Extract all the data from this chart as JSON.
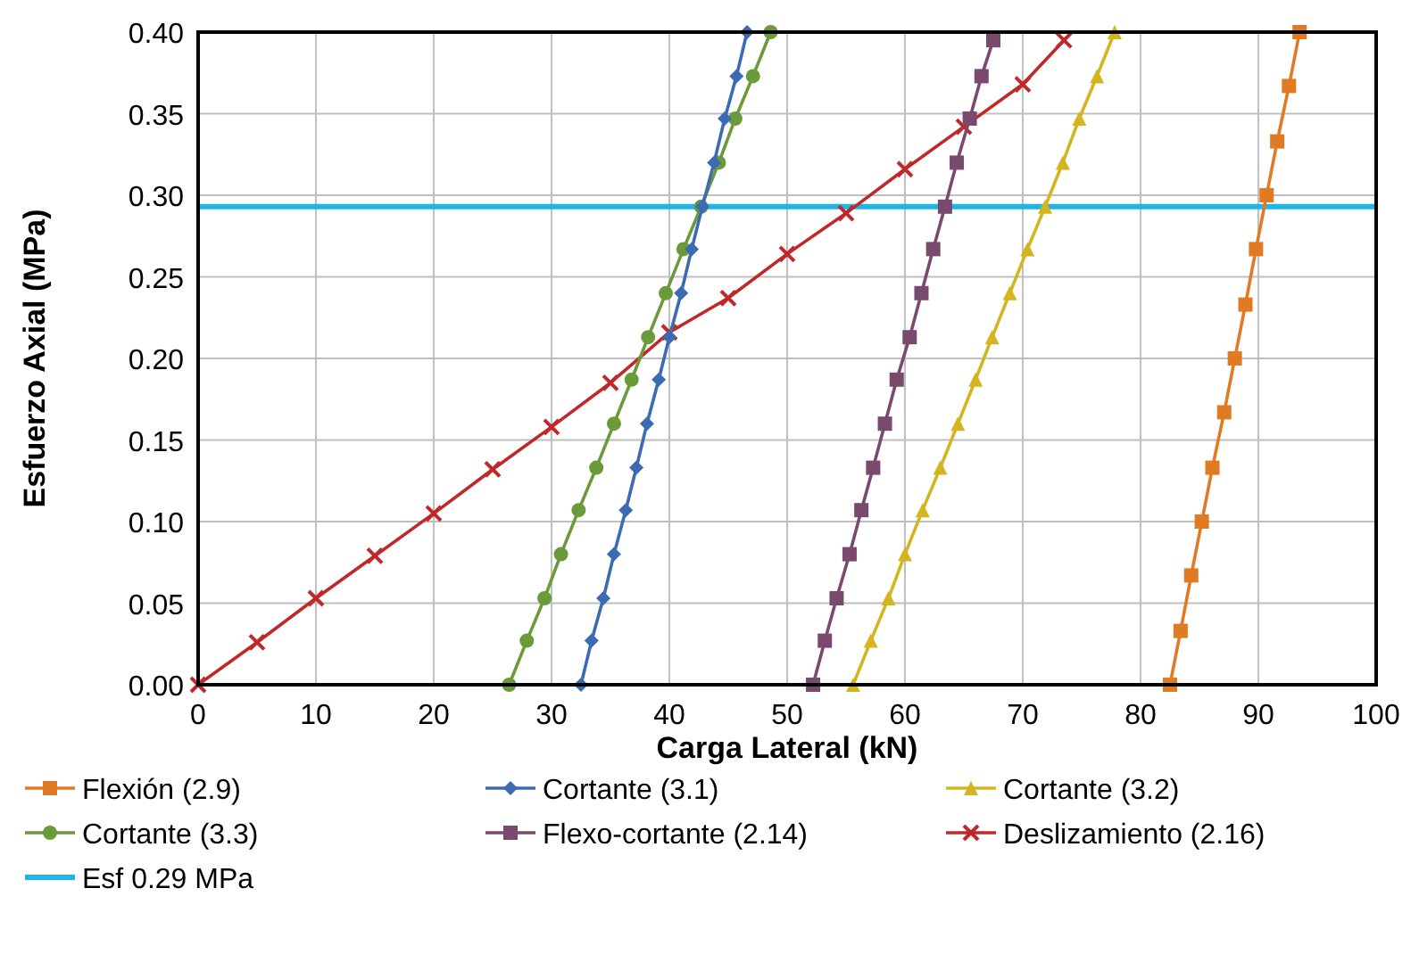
{
  "chart_data": {
    "type": "line",
    "xlabel": "Carga Lateral (kN)",
    "ylabel": "Esfuerzo Axial (MPa)",
    "xlim": [
      0,
      100
    ],
    "xticks": [
      0,
      10,
      20,
      30,
      40,
      50,
      60,
      70,
      80,
      90,
      100
    ],
    "ylim": [
      0,
      0.4
    ],
    "yticks": [
      {
        "value": 0,
        "label": "0.00"
      },
      {
        "value": 0.05,
        "label": "0.05"
      },
      {
        "value": 0.1,
        "label": "0.10"
      },
      {
        "value": 0.15,
        "label": "0.15"
      },
      {
        "value": 0.2,
        "label": "0.20"
      },
      {
        "value": 0.25,
        "label": "0.25"
      },
      {
        "value": 0.3,
        "label": "0.30"
      },
      {
        "value": 0.35,
        "label": "0.35"
      },
      {
        "value": 0.4,
        "label": "0.40"
      }
    ],
    "grid": true,
    "legend": "bottom",
    "line_style": "solid",
    "series": [
      {
        "name": "Flexión (2.9)",
        "color": "#e07b24",
        "marker": "square",
        "x": [
          82.5,
          83.4,
          84.3,
          85.2,
          86.1,
          87.1,
          88.0,
          88.9,
          89.8,
          90.7,
          91.6,
          92.6,
          93.5
        ],
        "values": [
          0,
          0.033,
          0.067,
          0.1,
          0.133,
          0.167,
          0.2,
          0.233,
          0.267,
          0.3,
          0.333,
          0.367,
          0.4
        ]
      },
      {
        "name": "Cortante (3.1)",
        "color": "#3d6bb3",
        "marker": "diamond",
        "x": [
          32.5,
          33.4,
          34.4,
          35.3,
          36.3,
          37.2,
          38.1,
          39.1,
          40.0,
          41.0,
          41.9,
          42.8,
          43.8,
          44.7,
          45.7,
          46.6
        ],
        "values": [
          0,
          0.027,
          0.053,
          0.08,
          0.107,
          0.133,
          0.16,
          0.187,
          0.213,
          0.24,
          0.267,
          0.293,
          0.32,
          0.347,
          0.373,
          0.4
        ]
      },
      {
        "name": "Cortante (3.2)",
        "color": "#d4b520",
        "marker": "triangle",
        "x": [
          55.6,
          57.1,
          58.6,
          60.0,
          61.5,
          63.0,
          64.5,
          66.0,
          67.4,
          68.9,
          70.4,
          71.9,
          73.4,
          74.8,
          76.3,
          77.8
        ],
        "values": [
          0,
          0.027,
          0.053,
          0.08,
          0.107,
          0.133,
          0.16,
          0.187,
          0.213,
          0.24,
          0.267,
          0.293,
          0.32,
          0.347,
          0.373,
          0.4
        ]
      },
      {
        "name": "Cortante (3.3)",
        "color": "#6a9a3a",
        "marker": "circle",
        "x": [
          26.4,
          27.9,
          29.4,
          30.8,
          32.3,
          33.8,
          35.3,
          36.8,
          38.2,
          39.7,
          41.2,
          42.7,
          44.2,
          45.6,
          47.1,
          48.6
        ],
        "values": [
          0,
          0.027,
          0.053,
          0.08,
          0.107,
          0.133,
          0.16,
          0.187,
          0.213,
          0.24,
          0.267,
          0.293,
          0.32,
          0.347,
          0.373,
          0.4
        ]
      },
      {
        "name": "Flexo-cortante (2.14)",
        "color": "#7a4a6e",
        "marker": "square",
        "x": [
          52.2,
          53.2,
          54.2,
          55.3,
          56.3,
          57.3,
          58.3,
          59.3,
          60.4,
          61.4,
          62.4,
          63.4,
          64.4,
          65.5,
          66.5,
          67.5
        ],
        "values": [
          0,
          0.027,
          0.053,
          0.08,
          0.107,
          0.133,
          0.16,
          0.187,
          0.213,
          0.24,
          0.267,
          0.293,
          0.32,
          0.347,
          0.373,
          0.395
        ]
      },
      {
        "name": "Deslizamiento (2.16)",
        "color": "#c0282a",
        "marker": "cross",
        "x": [
          0,
          5,
          10,
          15,
          20,
          25,
          30,
          35,
          40,
          45,
          50,
          55,
          60,
          65,
          70,
          73.5
        ],
        "values": [
          0,
          0.026,
          0.053,
          0.079,
          0.105,
          0.132,
          0.158,
          0.185,
          0.216,
          0.237,
          0.264,
          0.289,
          0.316,
          0.342,
          0.368,
          0.395
        ]
      }
    ],
    "ref_lines": [
      {
        "axis": "y",
        "value": 0.293,
        "label": "Esf 0.29 MPa",
        "color": "#1fb5e8",
        "line_style": "solid"
      }
    ]
  }
}
